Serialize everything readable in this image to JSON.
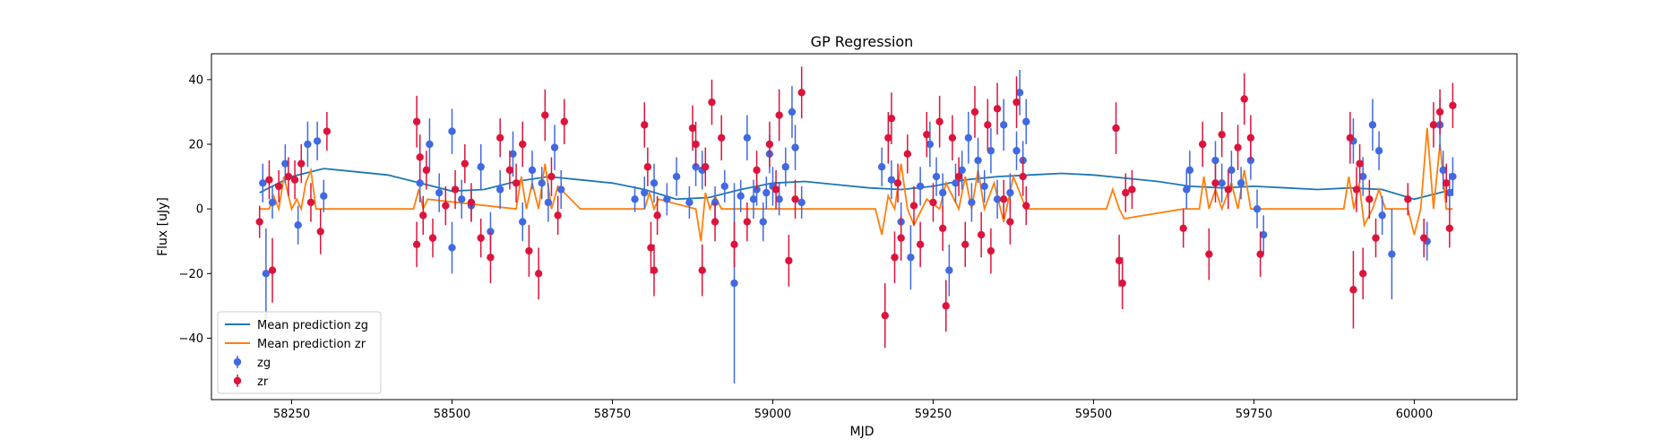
{
  "chart_data": {
    "type": "scatter",
    "title": "GP Regression",
    "xlabel": "MJD",
    "ylabel": "Flux [uJy]",
    "xlim": [
      58125,
      60160
    ],
    "ylim": [
      -59,
      48
    ],
    "xticks": [
      58250,
      58500,
      58750,
      59000,
      59250,
      59500,
      59750,
      60000
    ],
    "yticks": [
      -40,
      -20,
      0,
      20,
      40
    ],
    "grid": false,
    "legend_position": "lower-left",
    "series": [
      {
        "name": "Mean prediction zg",
        "kind": "line",
        "color": "#1f77b4",
        "x": [
          58200,
          58250,
          58300,
          58350,
          58400,
          58450,
          58500,
          58550,
          58600,
          58650,
          58700,
          58750,
          58800,
          58850,
          58900,
          58950,
          59000,
          59050,
          59100,
          59150,
          59200,
          59250,
          59300,
          59350,
          59400,
          59450,
          59500,
          59550,
          59600,
          59650,
          59700,
          59750,
          59800,
          59850,
          59900,
          59950,
          60000,
          60030,
          60060
        ],
        "y": [
          5,
          10,
          12.5,
          11.5,
          10.5,
          8,
          5.5,
          6,
          8.5,
          10,
          9,
          8,
          6,
          3,
          3.5,
          6,
          8,
          8.5,
          7.5,
          6.5,
          6,
          7,
          9,
          10,
          10.5,
          11,
          10.5,
          9.5,
          8.5,
          7,
          6.5,
          7,
          6.5,
          6,
          6.5,
          6,
          3,
          4.5,
          6
        ]
      },
      {
        "name": "Mean prediction zr",
        "kind": "line",
        "color": "#ff7f0e",
        "x": [
          58200,
          58215,
          58222,
          58230,
          58238,
          58250,
          58258,
          58265,
          58272,
          58280,
          58288,
          58300,
          58440,
          58448,
          58455,
          58462,
          58600,
          58608,
          58616,
          58625,
          58635,
          58645,
          58655,
          58665,
          58700,
          58800,
          58808,
          58815,
          58822,
          58880,
          58888,
          58895,
          58902,
          58910,
          58920,
          58950,
          59160,
          59170,
          59180,
          59190,
          59200,
          59210,
          59220,
          59240,
          59260,
          59270,
          59290,
          59300,
          59310,
          59320,
          59330,
          59345,
          59360,
          59375,
          59395,
          59520,
          59530,
          59540,
          59548,
          59640,
          59665,
          59672,
          59680,
          59690,
          59700,
          59715,
          59725,
          59735,
          59745,
          59760,
          59890,
          59898,
          59906,
          59914,
          59922,
          59935,
          59945,
          59955,
          59990,
          60000,
          60010,
          60020,
          60030,
          60040,
          60050,
          60060
        ],
        "y": [
          0,
          0,
          4,
          0,
          10,
          0,
          3,
          0,
          8,
          12,
          0,
          0,
          0,
          6,
          0,
          3,
          0,
          10,
          0,
          8,
          0,
          14,
          0,
          7,
          0,
          0,
          5,
          0,
          3,
          0,
          -10,
          5,
          0,
          4,
          0,
          0,
          0,
          -8,
          4,
          0,
          14,
          0,
          -5,
          3,
          0,
          8,
          0,
          10,
          0,
          12,
          0,
          8,
          -4,
          10,
          0,
          0,
          6,
          0,
          -3,
          0,
          0,
          10,
          0,
          6,
          0,
          8,
          0,
          12,
          0,
          0,
          0,
          10,
          0,
          8,
          -5,
          0,
          6,
          0,
          0,
          -8,
          0,
          25,
          0,
          20,
          0,
          0
        ]
      },
      {
        "name": "zg",
        "kind": "errorbar",
        "color": "#4169e1",
        "points": [
          [
            58205,
            8,
            6
          ],
          [
            58210,
            -20,
            14
          ],
          [
            58220,
            2,
            5
          ],
          [
            58240,
            14,
            6
          ],
          [
            58260,
            -5,
            6
          ],
          [
            58275,
            20,
            7
          ],
          [
            58290,
            21,
            6
          ],
          [
            58300,
            4,
            5
          ],
          [
            58450,
            8,
            6
          ],
          [
            58465,
            20,
            8
          ],
          [
            58480,
            5,
            6
          ],
          [
            58500,
            24,
            7
          ],
          [
            58500,
            -12,
            8
          ],
          [
            58515,
            3,
            6
          ],
          [
            58530,
            1,
            5
          ],
          [
            58545,
            13,
            7
          ],
          [
            58560,
            -7,
            6
          ],
          [
            58575,
            6,
            6
          ],
          [
            58595,
            17,
            7
          ],
          [
            58610,
            -4,
            6
          ],
          [
            58625,
            12,
            6
          ],
          [
            58640,
            8,
            5
          ],
          [
            58650,
            2,
            6
          ],
          [
            58660,
            19,
            7
          ],
          [
            58670,
            6,
            6
          ],
          [
            58785,
            3,
            4
          ],
          [
            58800,
            5,
            5
          ],
          [
            58815,
            8,
            6
          ],
          [
            58835,
            3,
            5
          ],
          [
            58850,
            10,
            6
          ],
          [
            58870,
            2,
            5
          ],
          [
            58880,
            13,
            6
          ],
          [
            58890,
            12,
            6
          ],
          [
            58910,
            2,
            5
          ],
          [
            58925,
            7,
            5
          ],
          [
            58940,
            -23,
            31
          ],
          [
            58950,
            4,
            5
          ],
          [
            58960,
            22,
            7
          ],
          [
            58970,
            3,
            6
          ],
          [
            58975,
            6,
            5
          ],
          [
            58985,
            -4,
            6
          ],
          [
            58990,
            5,
            5
          ],
          [
            58995,
            17,
            6
          ],
          [
            59000,
            7,
            6
          ],
          [
            59010,
            3,
            5
          ],
          [
            59020,
            13,
            6
          ],
          [
            59030,
            30,
            8
          ],
          [
            59035,
            19,
            7
          ],
          [
            59045,
            2,
            5
          ],
          [
            59170,
            13,
            6
          ],
          [
            59185,
            9,
            6
          ],
          [
            59200,
            -4,
            6
          ],
          [
            59215,
            -15,
            10
          ],
          [
            59230,
            7,
            6
          ],
          [
            59245,
            20,
            7
          ],
          [
            59255,
            10,
            6
          ],
          [
            59265,
            5,
            6
          ],
          [
            59275,
            -19,
            8
          ],
          [
            59285,
            8,
            6
          ],
          [
            59295,
            12,
            6
          ],
          [
            59305,
            22,
            8
          ],
          [
            59310,
            2,
            6
          ],
          [
            59320,
            15,
            7
          ],
          [
            59330,
            7,
            5
          ],
          [
            59340,
            18,
            7
          ],
          [
            59350,
            3,
            6
          ],
          [
            59360,
            26,
            8
          ],
          [
            59370,
            5,
            6
          ],
          [
            59380,
            18,
            6
          ],
          [
            59385,
            36,
            7
          ],
          [
            59390,
            15,
            6
          ],
          [
            59395,
            27,
            7
          ],
          [
            59645,
            6,
            6
          ],
          [
            59650,
            12,
            6
          ],
          [
            59690,
            15,
            6
          ],
          [
            59700,
            8,
            6
          ],
          [
            59715,
            12,
            6
          ],
          [
            59730,
            8,
            5
          ],
          [
            59745,
            15,
            6
          ],
          [
            59755,
            0,
            6
          ],
          [
            59765,
            -8,
            6
          ],
          [
            59905,
            21,
            7
          ],
          [
            59920,
            10,
            6
          ],
          [
            59935,
            26,
            8
          ],
          [
            59945,
            18,
            6
          ],
          [
            59950,
            -2,
            6
          ],
          [
            59965,
            -14,
            14
          ],
          [
            60020,
            -10,
            6
          ],
          [
            60040,
            26,
            8
          ],
          [
            60045,
            12,
            6
          ],
          [
            60055,
            5,
            6
          ],
          [
            60060,
            10,
            6
          ]
        ]
      },
      {
        "name": "zr",
        "kind": "errorbar",
        "color": "#dc143c",
        "points": [
          [
            58200,
            -4,
            5
          ],
          [
            58215,
            9,
            6
          ],
          [
            58220,
            -19,
            10
          ],
          [
            58230,
            7,
            5
          ],
          [
            58245,
            10,
            6
          ],
          [
            58255,
            9,
            6
          ],
          [
            58265,
            14,
            6
          ],
          [
            58280,
            2,
            6
          ],
          [
            58295,
            -7,
            7
          ],
          [
            58305,
            24,
            6
          ],
          [
            58445,
            27,
            8
          ],
          [
            58450,
            16,
            7
          ],
          [
            58455,
            -2,
            6
          ],
          [
            58460,
            12,
            6
          ],
          [
            58470,
            -9,
            6
          ],
          [
            58445,
            -11,
            7
          ],
          [
            58490,
            1,
            6
          ],
          [
            58505,
            6,
            6
          ],
          [
            58520,
            14,
            6
          ],
          [
            58530,
            2,
            6
          ],
          [
            58545,
            -9,
            6
          ],
          [
            58560,
            -15,
            8
          ],
          [
            58575,
            22,
            6
          ],
          [
            58590,
            12,
            6
          ],
          [
            58600,
            8,
            6
          ],
          [
            58610,
            20,
            7
          ],
          [
            58620,
            -13,
            8
          ],
          [
            58635,
            -20,
            8
          ],
          [
            58645,
            29,
            8
          ],
          [
            58655,
            10,
            6
          ],
          [
            58665,
            -2,
            6
          ],
          [
            58675,
            27,
            7
          ],
          [
            58800,
            26,
            7
          ],
          [
            58805,
            13,
            6
          ],
          [
            58810,
            -12,
            8
          ],
          [
            58815,
            -19,
            8
          ],
          [
            58820,
            -2,
            6
          ],
          [
            58875,
            25,
            7
          ],
          [
            58880,
            20,
            7
          ],
          [
            58890,
            -19,
            8
          ],
          [
            58895,
            13,
            6
          ],
          [
            58905,
            33,
            7
          ],
          [
            58910,
            -4,
            6
          ],
          [
            58920,
            22,
            7
          ],
          [
            58940,
            -11,
            7
          ],
          [
            58960,
            -4,
            6
          ],
          [
            58975,
            12,
            6
          ],
          [
            58995,
            20,
            7
          ],
          [
            59005,
            6,
            6
          ],
          [
            59010,
            29,
            8
          ],
          [
            59025,
            -16,
            8
          ],
          [
            59035,
            3,
            6
          ],
          [
            59045,
            36,
            8
          ],
          [
            59175,
            -33,
            10
          ],
          [
            59180,
            22,
            8
          ],
          [
            59185,
            28,
            8
          ],
          [
            59190,
            -15,
            8
          ],
          [
            59195,
            8,
            6
          ],
          [
            59200,
            -9,
            7
          ],
          [
            59210,
            17,
            6
          ],
          [
            59220,
            1,
            6
          ],
          [
            59230,
            -11,
            7
          ],
          [
            59240,
            23,
            7
          ],
          [
            59250,
            2,
            6
          ],
          [
            59260,
            27,
            8
          ],
          [
            59265,
            -6,
            7
          ],
          [
            59270,
            -30,
            8
          ],
          [
            59280,
            22,
            7
          ],
          [
            59290,
            10,
            6
          ],
          [
            59300,
            -11,
            7
          ],
          [
            59315,
            30,
            8
          ],
          [
            59325,
            -8,
            7
          ],
          [
            59335,
            26,
            8
          ],
          [
            59340,
            -13,
            7
          ],
          [
            59350,
            31,
            8
          ],
          [
            59360,
            3,
            6
          ],
          [
            59370,
            -4,
            7
          ],
          [
            59380,
            33,
            8
          ],
          [
            59390,
            10,
            6
          ],
          [
            59395,
            1,
            6
          ],
          [
            59535,
            25,
            8
          ],
          [
            59540,
            -16,
            8
          ],
          [
            59545,
            -23,
            8
          ],
          [
            59550,
            5,
            6
          ],
          [
            59560,
            6,
            6
          ],
          [
            59640,
            -6,
            6
          ],
          [
            59670,
            20,
            7
          ],
          [
            59680,
            -14,
            8
          ],
          [
            59690,
            8,
            6
          ],
          [
            59700,
            23,
            7
          ],
          [
            59710,
            6,
            6
          ],
          [
            59725,
            19,
            7
          ],
          [
            59735,
            34,
            8
          ],
          [
            59745,
            22,
            7
          ],
          [
            59760,
            -14,
            7
          ],
          [
            59900,
            22,
            8
          ],
          [
            59905,
            -25,
            12
          ],
          [
            59910,
            6,
            7
          ],
          [
            59915,
            14,
            6
          ],
          [
            59920,
            -20,
            8
          ],
          [
            59930,
            3,
            6
          ],
          [
            59940,
            -9,
            6
          ],
          [
            59990,
            3,
            5
          ],
          [
            60015,
            -9,
            6
          ],
          [
            60030,
            26,
            7
          ],
          [
            60040,
            30,
            7
          ],
          [
            60050,
            8,
            6
          ],
          [
            60055,
            -6,
            6
          ],
          [
            60060,
            32,
            7
          ]
        ]
      }
    ]
  }
}
